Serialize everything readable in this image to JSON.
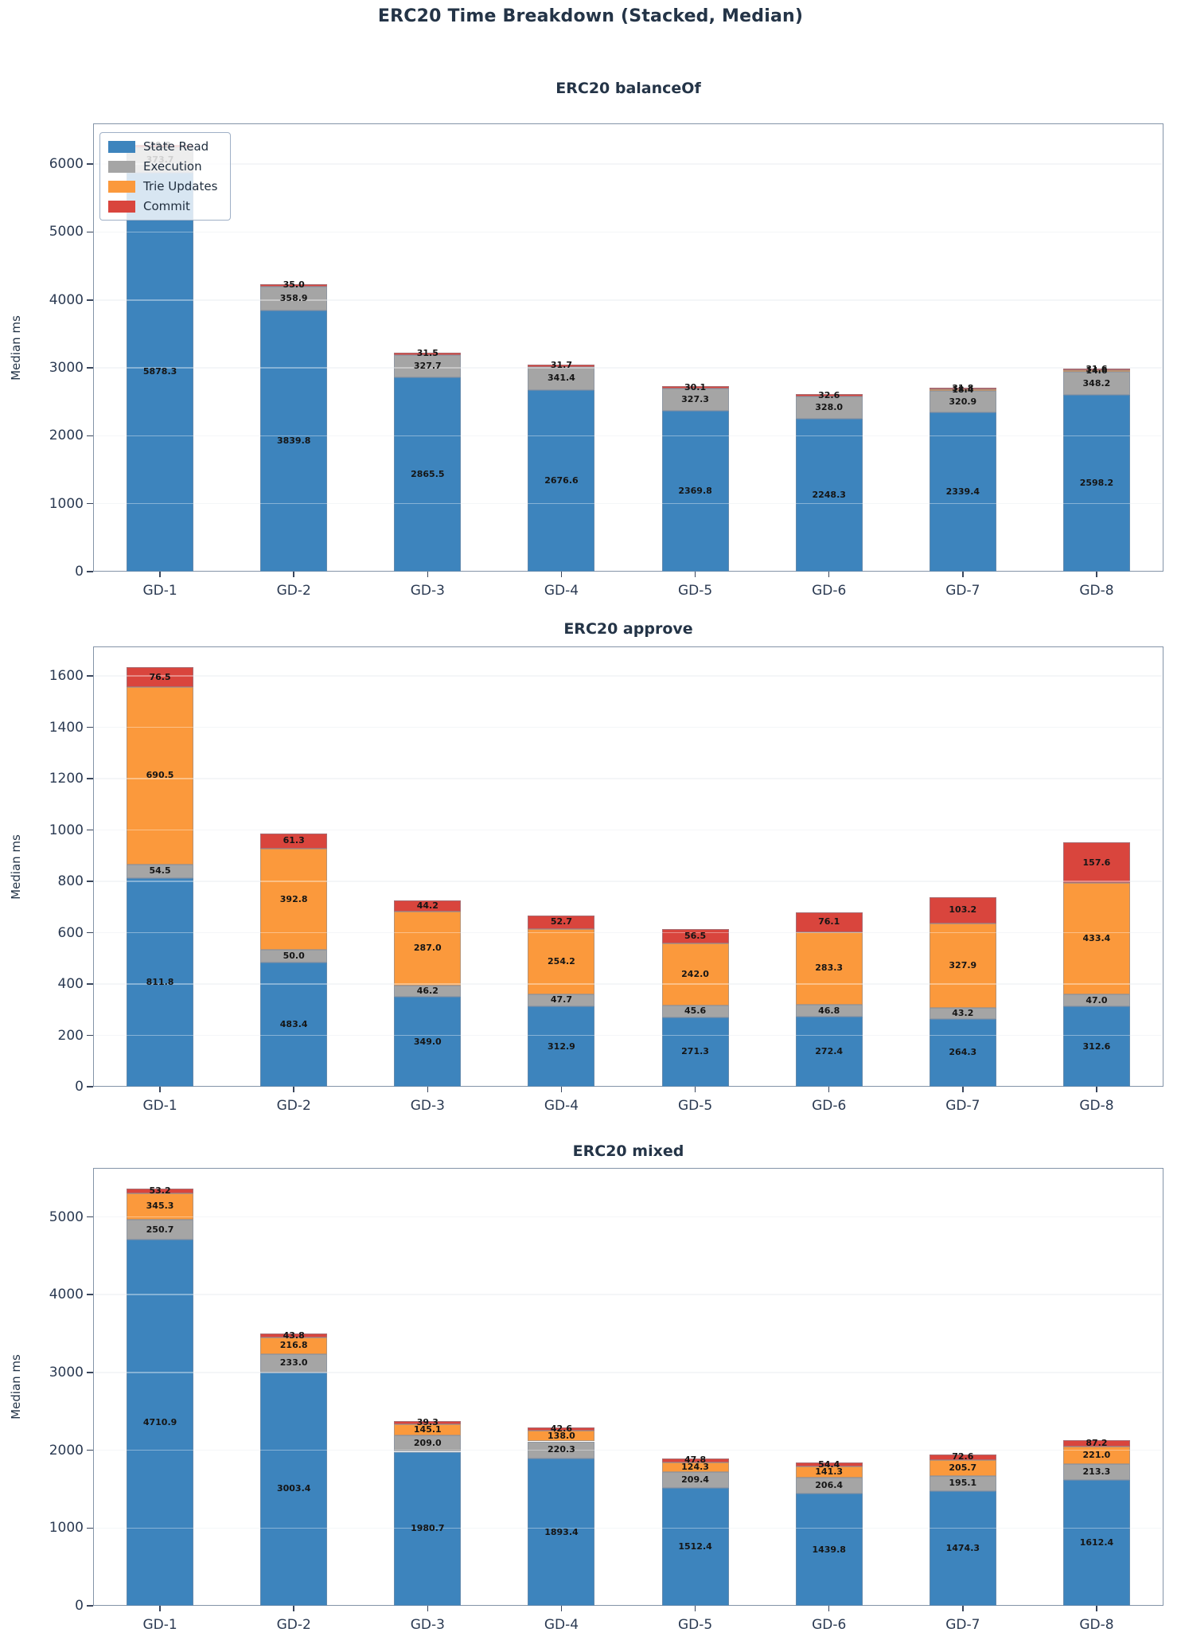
{
  "main_title": "ERC20 Time Breakdown (Stacked, Median)",
  "chart_data": [
    {
      "type": "bar",
      "subtype": "stacked",
      "title": "ERC20 balanceOf",
      "ylabel": "Median ms",
      "categories": [
        "GD-1",
        "GD-2",
        "GD-3",
        "GD-4",
        "GD-5",
        "GD-6",
        "GD-7",
        "GD-8"
      ],
      "yticks": [
        0,
        1000,
        2000,
        3000,
        4000,
        5000,
        6000
      ],
      "ylim": [
        0,
        6600
      ],
      "grid": "horizontal",
      "legend_position": "upper-left",
      "series": [
        {
          "name": "State Read",
          "color": "#3d84bd",
          "values": [
            5878.3,
            3839.8,
            2865.5,
            2676.6,
            2369.8,
            2248.3,
            2339.4,
            2598.2
          ]
        },
        {
          "name": "Execution",
          "color": "#a5a5a5",
          "values": [
            373.7,
            358.9,
            327.7,
            341.4,
            327.3,
            328.0,
            320.9,
            348.2
          ]
        },
        {
          "name": "Trie Updates",
          "color": "#fb993c",
          "values": [
            null,
            null,
            null,
            null,
            null,
            null,
            18.4,
            14.6
          ]
        },
        {
          "name": "Commit",
          "color": "#d9453d",
          "values": [
            29.8,
            35.0,
            31.5,
            31.7,
            30.1,
            32.6,
            31.8,
            31.6
          ]
        }
      ]
    },
    {
      "type": "bar",
      "subtype": "stacked",
      "title": "ERC20 approve",
      "ylabel": "Median ms",
      "categories": [
        "GD-1",
        "GD-2",
        "GD-3",
        "GD-4",
        "GD-5",
        "GD-6",
        "GD-7",
        "GD-8"
      ],
      "yticks": [
        0,
        200,
        400,
        600,
        800,
        1000,
        1200,
        1400,
        1600
      ],
      "ylim": [
        0,
        1715
      ],
      "grid": "horizontal",
      "legend_position": "none",
      "series": [
        {
          "name": "State Read",
          "color": "#3d84bd",
          "values": [
            811.8,
            483.4,
            349.0,
            312.9,
            271.3,
            272.4,
            264.3,
            312.6
          ]
        },
        {
          "name": "Execution",
          "color": "#a5a5a5",
          "values": [
            54.5,
            50.0,
            46.2,
            47.7,
            45.6,
            46.8,
            43.2,
            47.0
          ]
        },
        {
          "name": "Trie Updates",
          "color": "#fb993c",
          "values": [
            690.5,
            392.8,
            287.0,
            254.2,
            242.0,
            283.3,
            327.9,
            433.4
          ]
        },
        {
          "name": "Commit",
          "color": "#d9453d",
          "values": [
            76.5,
            61.3,
            44.2,
            52.7,
            56.5,
            76.1,
            103.2,
            157.6
          ]
        }
      ]
    },
    {
      "type": "bar",
      "subtype": "stacked",
      "title": "ERC20 mixed",
      "ylabel": "Median ms",
      "categories": [
        "GD-1",
        "GD-2",
        "GD-3",
        "GD-4",
        "GD-5",
        "GD-6",
        "GD-7",
        "GD-8"
      ],
      "yticks": [
        0,
        1000,
        2000,
        3000,
        4000,
        5000
      ],
      "ylim": [
        0,
        5630
      ],
      "grid": "horizontal",
      "legend_position": "none",
      "series": [
        {
          "name": "State Read",
          "color": "#3d84bd",
          "values": [
            4710.9,
            3003.4,
            1980.7,
            1893.4,
            1512.4,
            1439.8,
            1474.3,
            1612.4
          ]
        },
        {
          "name": "Execution",
          "color": "#a5a5a5",
          "values": [
            250.7,
            233.0,
            209.0,
            220.3,
            209.4,
            206.4,
            195.1,
            213.3
          ]
        },
        {
          "name": "Trie Updates",
          "color": "#fb993c",
          "values": [
            345.3,
            216.8,
            145.1,
            138.0,
            124.3,
            141.3,
            205.7,
            221.0
          ]
        },
        {
          "name": "Commit",
          "color": "#d9453d",
          "values": [
            53.2,
            43.8,
            39.3,
            42.6,
            47.8,
            54.4,
            72.6,
            87.2
          ]
        }
      ]
    }
  ]
}
